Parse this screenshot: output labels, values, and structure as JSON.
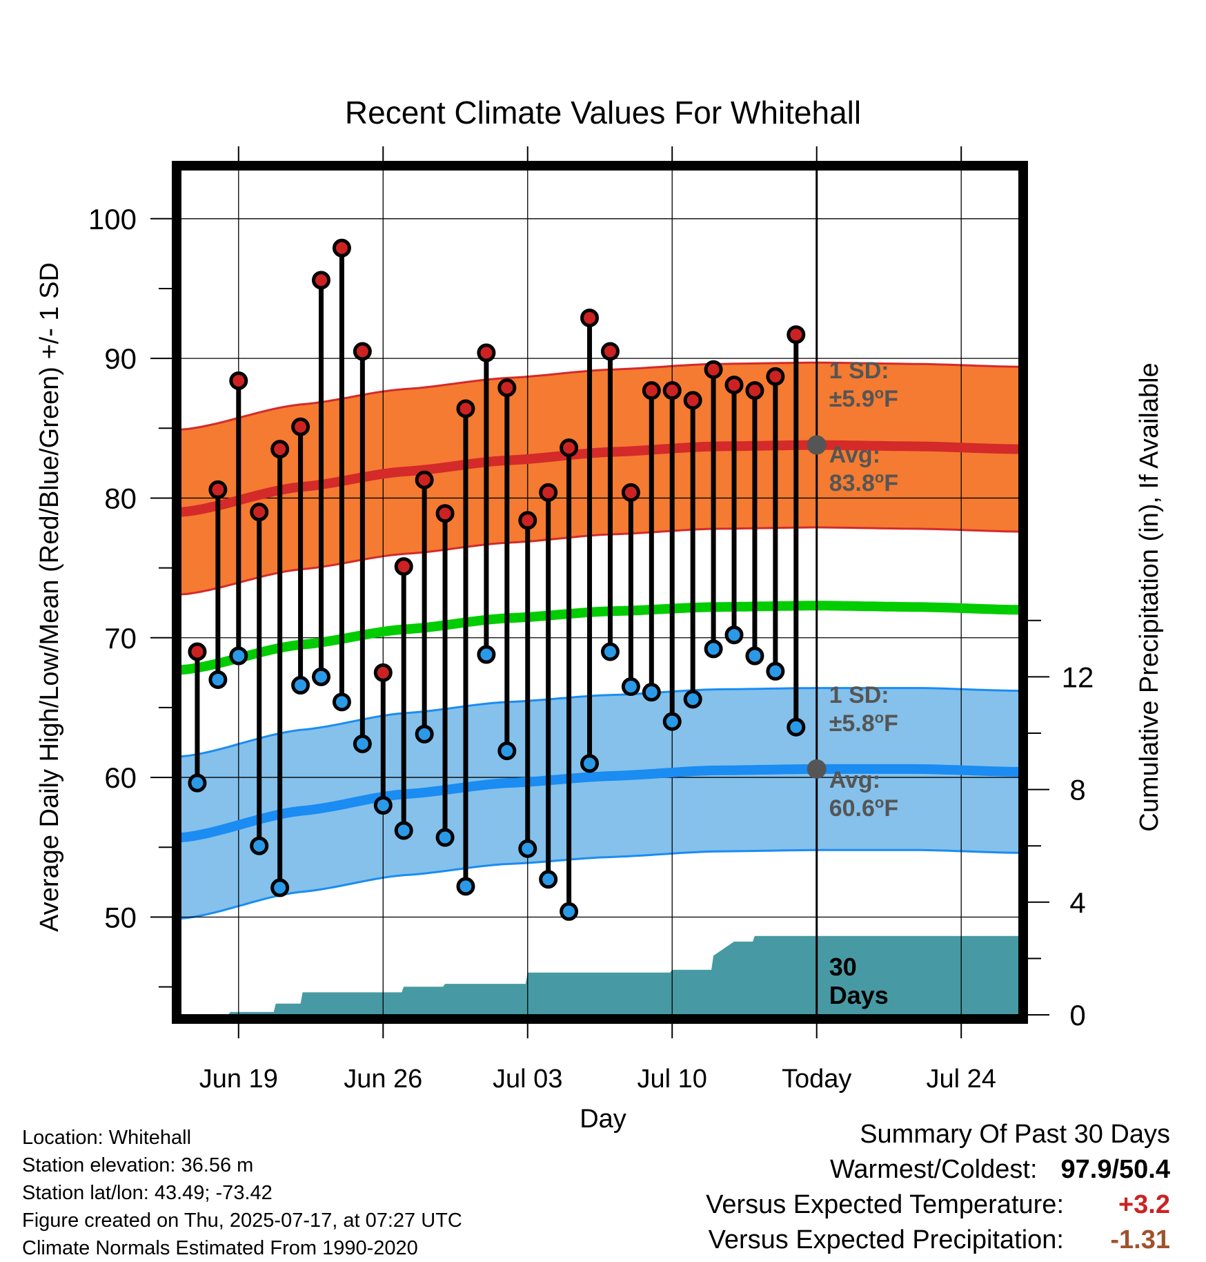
{
  "chart_data": {
    "type": "line",
    "title": "Recent Climate Values For Whitehall",
    "xlabel": "Day",
    "ylabel": "Average Daily High/Low/Mean (Red/Blue/Green) +/- 1 SD",
    "y2label": "Cumulative Precipitation (in), If Available",
    "x_tick_labels": [
      "Jun 19",
      "Jun 26",
      "Jul 03",
      "Jul 10",
      "Today",
      "Jul 24"
    ],
    "x_tick_days": [
      0,
      7,
      14,
      21,
      28,
      35
    ],
    "xlim": [
      -2.8,
      37.8
    ],
    "ylim": [
      43,
      103.5
    ],
    "y_ticks": [
      50,
      60,
      70,
      80,
      90,
      100
    ],
    "y2lim": [
      0,
      30
    ],
    "y2_ticks": [
      0,
      4,
      8,
      12
    ],
    "grid": true,
    "observed_days": [
      -2,
      -1,
      0,
      1,
      2,
      3,
      4,
      5,
      6,
      7,
      8,
      9,
      10,
      11,
      12,
      13,
      14,
      15,
      16,
      17,
      18,
      19,
      20,
      21,
      22,
      23,
      24,
      25,
      26,
      27
    ],
    "observed_high": [
      69.0,
      80.6,
      88.4,
      79.0,
      83.5,
      85.1,
      95.6,
      97.9,
      90.5,
      67.5,
      75.1,
      81.3,
      78.9,
      86.4,
      90.4,
      87.9,
      78.4,
      80.4,
      83.6,
      92.9,
      90.5,
      80.4,
      87.7,
      87.7,
      87.0,
      89.2,
      88.1,
      87.7,
      88.7,
      91.7
    ],
    "observed_low": [
      59.6,
      67.0,
      68.7,
      55.1,
      52.1,
      66.6,
      67.2,
      65.4,
      62.4,
      58.0,
      56.2,
      63.1,
      55.7,
      52.2,
      68.8,
      61.9,
      54.9,
      52.7,
      50.4,
      61.0,
      69.0,
      66.5,
      66.1,
      64.0,
      65.6,
      69.2,
      70.2,
      68.7,
      67.6,
      63.6
    ],
    "normals_days": [
      -2.7,
      3,
      8,
      13,
      18,
      23,
      28,
      33,
      37.7
    ],
    "normal_high": [
      79.0,
      80.8,
      81.9,
      82.7,
      83.3,
      83.7,
      83.8,
      83.7,
      83.5
    ],
    "normal_mean": [
      67.7,
      69.5,
      70.6,
      71.4,
      71.9,
      72.2,
      72.3,
      72.2,
      72.0
    ],
    "normal_low": [
      55.7,
      57.6,
      58.8,
      59.6,
      60.1,
      60.5,
      60.6,
      60.6,
      60.4
    ],
    "high_sd": 5.9,
    "low_sd": 5.8,
    "precip_days": [
      -2.8,
      -0.5,
      -0.4,
      1.7,
      1.8,
      3.0,
      3.1,
      7.9,
      8.0,
      9.9,
      10.0,
      13.9,
      14.0,
      20.9,
      21.0,
      22.9,
      23.0,
      24.0,
      24.9,
      25.0,
      37.8
    ],
    "precip_cum": [
      0,
      0,
      0.1,
      0.1,
      0.4,
      0.4,
      0.8,
      0.8,
      1.0,
      1.0,
      1.1,
      1.1,
      1.5,
      1.5,
      1.6,
      1.6,
      2.1,
      2.6,
      2.6,
      2.8,
      2.8
    ],
    "annotations": {
      "high_sd_label": [
        "1 SD:",
        "±5.9°F"
      ],
      "high_avg_label": [
        "Avg:",
        "83.8°F"
      ],
      "low_sd_label": [
        "1 SD:",
        "±5.8°F"
      ],
      "low_avg_label": [
        "Avg:",
        "60.6°F"
      ],
      "window_label": [
        "30",
        "Days"
      ]
    },
    "colors": {
      "high_band": "#f47b31",
      "high_line": "#d42a2a",
      "low_band": "#85c1ea",
      "low_line": "#1a8cf2",
      "mean_line": "#00cc00",
      "precip_fill": "#479aa3",
      "high_dot": "#cc2222",
      "low_dot": "#2a9ae8",
      "today_dot": "#555555",
      "annotation_text": "#555555"
    }
  },
  "footer": {
    "location": "Location: Whitehall",
    "elevation": "Station elevation: 36.56 m",
    "latlon": "Station lat/lon: 43.49; -73.42",
    "created": "Figure created on Thu, 2025-07-17, at 07:27 UTC",
    "normals": "Climate Normals Estimated From 1990-2020"
  },
  "summary": {
    "title": "Summary Of Past 30 Days",
    "warmest_label": "Warmest/Coldest:",
    "warmest_value": "97.9/50.4",
    "temp_label": "Versus Expected Temperature:",
    "temp_value": "+3.2",
    "temp_color": "#cc2222",
    "precip_label": "Versus Expected Precipitation:",
    "precip_value": "-1.31",
    "precip_color": "#a0522d"
  }
}
